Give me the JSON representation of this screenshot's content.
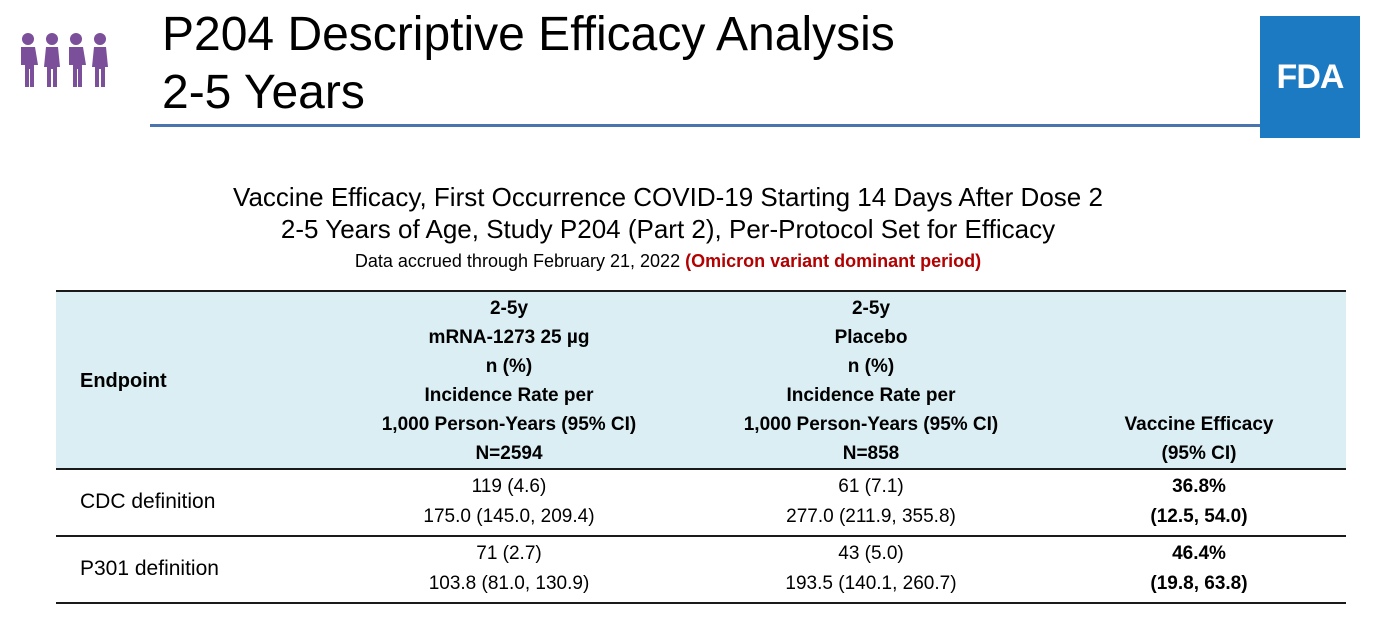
{
  "header": {
    "title_line1": "P204 Descriptive Efficacy Analysis",
    "title_line2": "2-5 Years",
    "logo": "FDA"
  },
  "caption": {
    "line1": "Vaccine Efficacy, First Occurrence COVID-19 Starting 14 Days After Dose 2",
    "line2": "2-5 Years of Age, Study P204 (Part 2), Per-Protocol Set for Efficacy",
    "line3_prefix": "Data accrued through February 21, 2022 ",
    "line3_highlight": "(Omicron variant dominant period)"
  },
  "table": {
    "headers": {
      "endpoint": "Endpoint",
      "vaccine": [
        "2-5y",
        "mRNA-1273 25 µg",
        "n (%)",
        "Incidence Rate per",
        "1,000 Person-Years (95% CI)",
        "N=2594"
      ],
      "placebo": [
        "2-5y",
        "Placebo",
        "n (%)",
        "Incidence Rate per",
        "1,000 Person-Years (95% CI)",
        "N=858"
      ],
      "efficacy": [
        "Vaccine Efficacy",
        "(95% CI)"
      ]
    },
    "rows": [
      {
        "endpoint": "CDC definition",
        "vaccine": [
          "119 (4.6)",
          "175.0 (145.0, 209.4)"
        ],
        "placebo": [
          "61 (7.1)",
          "277.0 (211.9, 355.8)"
        ],
        "efficacy": [
          "36.8%",
          "(12.5, 54.0)"
        ]
      },
      {
        "endpoint": "P301 definition",
        "vaccine": [
          "71 (2.7)",
          "103.8 (81.0, 130.9)"
        ],
        "placebo": [
          "43 (5.0)",
          "193.5 (140.1, 260.7)"
        ],
        "efficacy": [
          "46.4%",
          "(19.8, 63.8)"
        ]
      }
    ]
  },
  "colors": {
    "accent": "#4a74ad",
    "fda_blue": "#1c7ac2",
    "icon_purple": "#7b4f9a",
    "highlight_red": "#b30000",
    "header_bg": "#daeef3"
  },
  "icons": [
    "children-group-icon"
  ]
}
